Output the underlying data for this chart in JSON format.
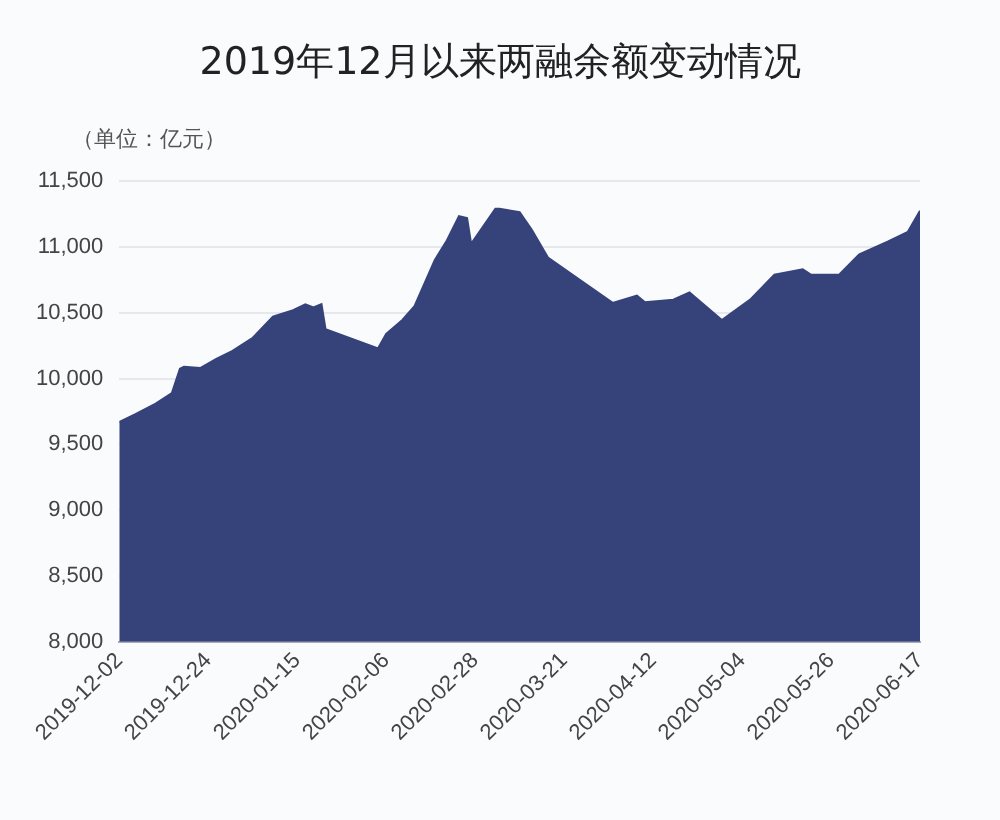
{
  "chart_data": {
    "type": "area",
    "title": "2019年12月以来两融余额变动情况",
    "ylabel": "（单位：亿元）",
    "x": [
      "2019-12-02",
      "2019-12-06",
      "2019-12-11",
      "2019-12-15",
      "2019-12-17",
      "2019-12-18",
      "2019-12-22",
      "2019-12-26",
      "2019-12-30",
      "2020-01-04",
      "2020-01-09",
      "2020-01-14",
      "2020-01-17",
      "2020-01-19",
      "2020-01-21",
      "2020-01-22",
      "2020-02-04",
      "2020-02-06",
      "2020-02-10",
      "2020-02-13",
      "2020-02-18",
      "2020-02-21",
      "2020-02-24",
      "2020-02-26",
      "2020-02-27",
      "2020-03-04",
      "2020-03-05",
      "2020-03-10",
      "2020-03-13",
      "2020-03-17",
      "2020-03-23",
      "2020-04-02",
      "2020-04-08",
      "2020-04-10",
      "2020-04-17",
      "2020-04-21",
      "2020-04-29",
      "2020-05-06",
      "2020-05-12",
      "2020-05-19",
      "2020-05-21",
      "2020-05-28",
      "2020-06-02",
      "2020-06-09",
      "2020-06-14",
      "2020-06-17"
    ],
    "series": [
      {
        "color": "#36437a",
        "values": [
          9670,
          9730,
          9810,
          9890,
          10075,
          10090,
          10080,
          10150,
          10210,
          10310,
          10470,
          10520,
          10565,
          10540,
          10565,
          10375,
          10230,
          10340,
          10445,
          10550,
          10900,
          11050,
          11235,
          11220,
          11025,
          11290,
          11290,
          11265,
          11130,
          10920,
          10790,
          10575,
          10630,
          10580,
          10600,
          10655,
          10445,
          10600,
          10790,
          10830,
          10790,
          10790,
          10945,
          11040,
          11115,
          11275
        ]
      }
    ],
    "xlim": [
      "2019-12-02",
      "2020-06-17"
    ],
    "xticks": [
      "2019-12-02",
      "2019-12-24",
      "2020-01-15",
      "2020-02-06",
      "2020-02-28",
      "2020-03-21",
      "2020-04-12",
      "2020-05-04",
      "2020-05-26",
      "2020-06-17"
    ],
    "ylim": [
      8000,
      11500
    ],
    "yticks": [
      {
        "value": 8000,
        "label": "8,000"
      },
      {
        "value": 8500,
        "label": "8,500"
      },
      {
        "value": 9000,
        "label": "9,000"
      },
      {
        "value": 9500,
        "label": "9,500"
      },
      {
        "value": 10000,
        "label": "10,000"
      },
      {
        "value": 10500,
        "label": "10,500"
      },
      {
        "value": 11000,
        "label": "11,000"
      },
      {
        "value": 11500,
        "label": "11,500"
      }
    ],
    "grid": "y",
    "legend": false
  }
}
